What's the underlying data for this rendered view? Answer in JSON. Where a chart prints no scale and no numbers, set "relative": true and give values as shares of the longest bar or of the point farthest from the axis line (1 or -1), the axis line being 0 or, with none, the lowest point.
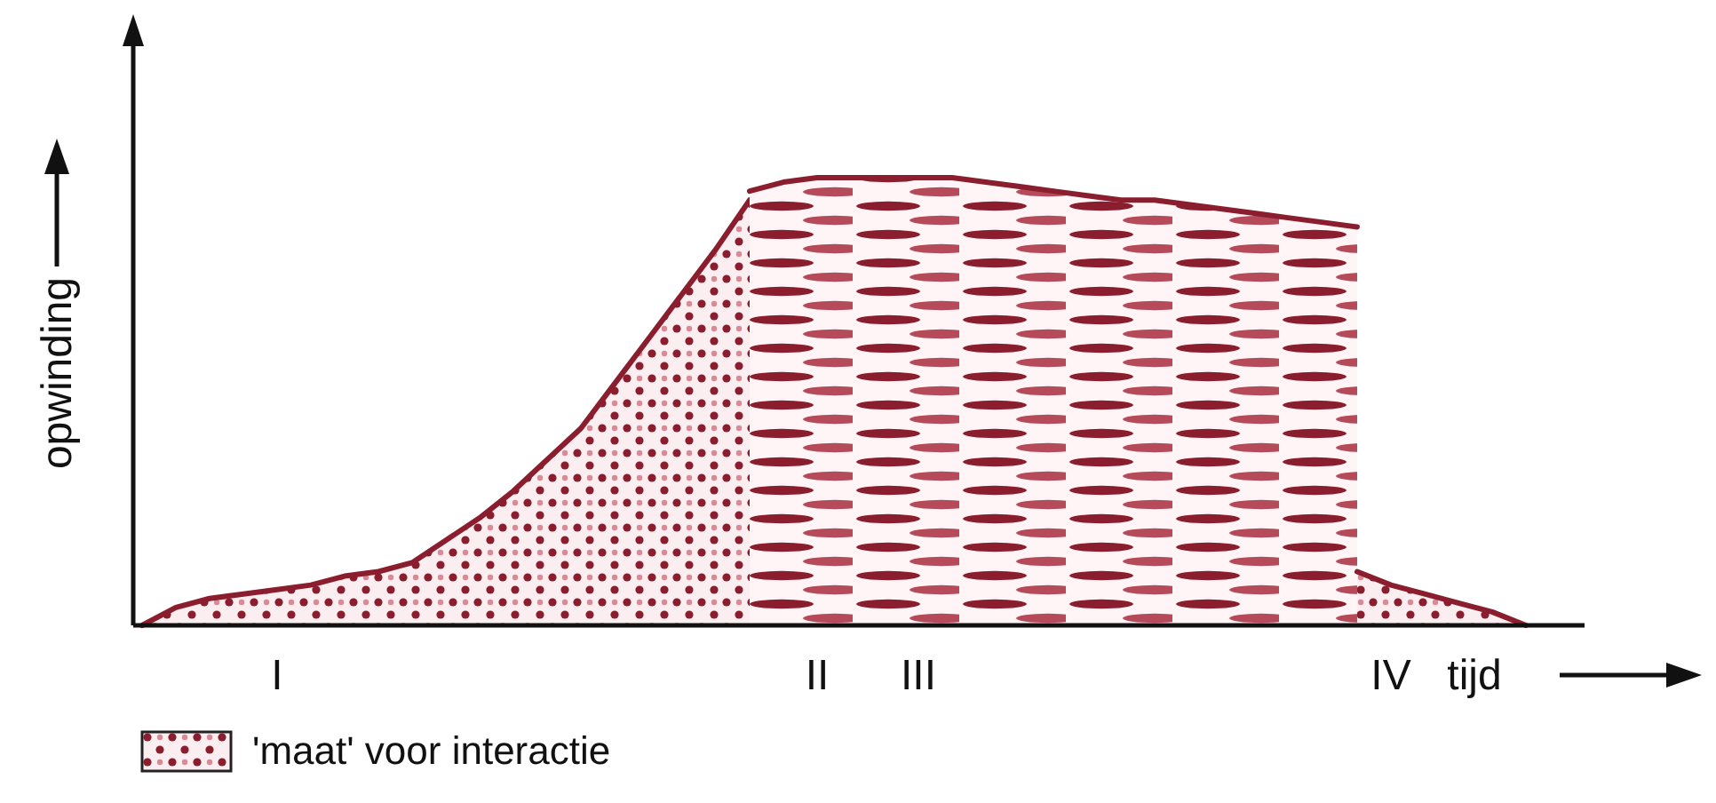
{
  "chart_data": {
    "type": "area",
    "relative": true,
    "xlabel": "tijd",
    "ylabel": "opwinding",
    "legend": "bottom left",
    "categories": [
      null,
      null,
      null,
      null,
      "I",
      null,
      null,
      null,
      null,
      null,
      null,
      null,
      null,
      null,
      null,
      null,
      null,
      null,
      null,
      null,
      "II",
      null,
      null,
      "III",
      null,
      null,
      null,
      null,
      null,
      null,
      null,
      null,
      null,
      null,
      null,
      null,
      null,
      "IV",
      null,
      null,
      null,
      null
    ],
    "series": [
      {
        "name": "'maat' voor interactie",
        "color": "#8b1e2e",
        "values": [
          0,
          0.04,
          0.06,
          0.07,
          0.08,
          0.09,
          0.11,
          0.12,
          0.14,
          0.19,
          0.24,
          0.3,
          0.37,
          0.44,
          0.54,
          0.64,
          0.74,
          0.84,
          0.95,
          null,
          null,
          null,
          null,
          null,
          null,
          null,
          null,
          null,
          null,
          null,
          null,
          null,
          null,
          null,
          null,
          null,
          null,
          null,
          null,
          null,
          null,
          null
        ]
      },
      {
        "color": "#8b1e2e",
        "values": [
          null,
          null,
          null,
          null,
          null,
          null,
          null,
          null,
          null,
          null,
          null,
          null,
          null,
          null,
          null,
          null,
          null,
          null,
          0.97,
          0.99,
          1,
          1,
          1,
          1,
          1,
          0.99,
          0.98,
          0.97,
          0.96,
          0.95,
          0.95,
          0.94,
          0.93,
          0.92,
          0.91,
          0.9,
          0.89,
          null,
          null,
          null,
          null,
          null
        ]
      },
      {
        "color": "#8b1e2e",
        "values": [
          null,
          null,
          null,
          null,
          null,
          null,
          null,
          null,
          null,
          null,
          null,
          null,
          null,
          null,
          null,
          null,
          null,
          null,
          null,
          null,
          null,
          null,
          null,
          null,
          null,
          null,
          null,
          null,
          null,
          null,
          null,
          null,
          null,
          null,
          null,
          null,
          0.12,
          0.09,
          0.07,
          0.05,
          0.03,
          0
        ]
      }
    ]
  }
}
